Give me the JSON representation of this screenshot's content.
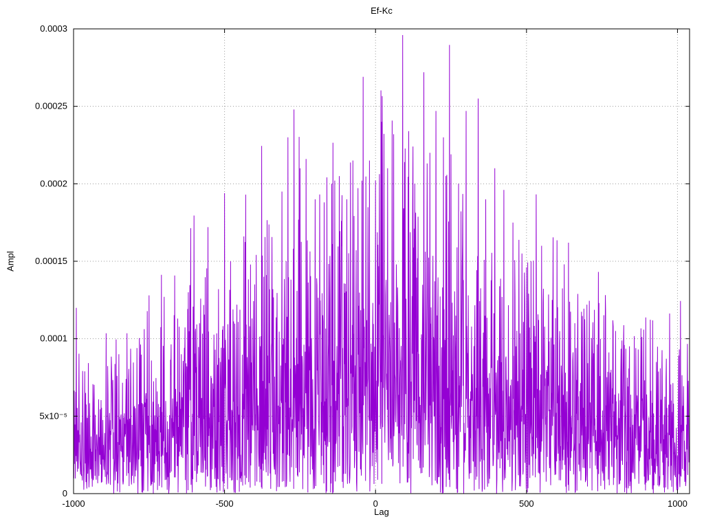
{
  "chart_data": {
    "type": "line",
    "title": "Ef-Kc",
    "xlabel": "Lag",
    "ylabel": "Ampl",
    "xlim": [
      -1000,
      1040
    ],
    "ylim": [
      0,
      0.0003
    ],
    "grid": true,
    "legend": "none",
    "x_ticks": [
      {
        "value": -1000,
        "label": "-1000"
      },
      {
        "value": -500,
        "label": "-500"
      },
      {
        "value": 0,
        "label": "0"
      },
      {
        "value": 500,
        "label": "500"
      },
      {
        "value": 1000,
        "label": "1000"
      }
    ],
    "y_ticks": [
      {
        "value": 0,
        "label": "0"
      },
      {
        "value": 5e-05,
        "label": "5x10⁻⁵"
      },
      {
        "value": 0.0001,
        "label": "0.0001"
      },
      {
        "value": 0.00015,
        "label": "0.00015"
      },
      {
        "value": 0.0002,
        "label": "0.0002"
      },
      {
        "value": 0.00025,
        "label": "0.00025"
      },
      {
        "value": 0.0003,
        "label": "0.0003"
      }
    ],
    "style": {
      "line_color": "#9400d3",
      "grid_color": "#9a9a9a",
      "border_color": "#000000",
      "background": "#ffffff"
    },
    "series": [
      {
        "name": "Ef-Kc",
        "synthesis": {
          "kind": "rectified-gaussian-noise",
          "seed": 42,
          "x_start": -1000,
          "x_end": 1040,
          "x_step": 1,
          "envelope": {
            "edge_amplitude": 3.4e-05,
            "peak_amplitude": 0.000105,
            "peak_x": 50,
            "half_width": 1080
          }
        },
        "notable_peaks": [
          [
            -960,
            6.5e-05
          ],
          [
            -850,
            9e-05
          ],
          [
            -790,
            9.4e-05
          ],
          [
            -750,
            0.000128
          ],
          [
            -700,
            0.000127
          ],
          [
            -655,
            0.000113
          ],
          [
            -620,
            0.00013
          ],
          [
            -555,
            0.000172
          ],
          [
            -520,
            0.000132
          ],
          [
            -500,
            0.000194
          ],
          [
            -480,
            0.00015
          ],
          [
            -430,
            0.000193
          ],
          [
            -400,
            0.000135
          ],
          [
            -370,
            0.00014
          ],
          [
            -340,
            0.000132
          ],
          [
            -310,
            0.000195
          ],
          [
            -290,
            0.00023
          ],
          [
            -270,
            0.000248
          ],
          [
            -250,
            0.00021
          ],
          [
            -230,
            0.000216
          ],
          [
            -200,
            0.00019
          ],
          [
            -170,
            0.000188
          ],
          [
            -145,
            0.0002
          ],
          [
            -120,
            0.000205
          ],
          [
            -95,
            0.00019
          ],
          [
            -75,
            0.000215
          ],
          [
            -45,
            0.000202
          ],
          [
            -20,
            0.000215
          ],
          [
            0,
            0.000202
          ],
          [
            20,
            0.00024
          ],
          [
            40,
            0.00021
          ],
          [
            60,
            0.000232
          ],
          [
            90,
            0.000296
          ],
          [
            110,
            0.000234
          ],
          [
            130,
            0.0002
          ],
          [
            160,
            0.000272
          ],
          [
            180,
            0.00022
          ],
          [
            200,
            0.000247
          ],
          [
            225,
            0.00023
          ],
          [
            250,
            0.000219
          ],
          [
            275,
            0.0002
          ],
          [
            300,
            0.000247
          ],
          [
            340,
            0.000255
          ],
          [
            365,
            0.00019
          ],
          [
            395,
            0.00021
          ],
          [
            425,
            0.000196
          ],
          [
            455,
            0.000175
          ],
          [
            485,
            0.000155
          ],
          [
            515,
            0.00015
          ],
          [
            550,
            0.00016
          ],
          [
            585,
            0.000125
          ],
          [
            625,
            0.000148
          ],
          [
            660,
            0.00011
          ],
          [
            700,
            0.000122
          ],
          [
            745,
            0.0001
          ],
          [
            795,
            0.000105
          ],
          [
            870,
            9.3e-05
          ],
          [
            930,
            8.5e-05
          ],
          [
            980,
            6e-05
          ]
        ]
      }
    ]
  }
}
